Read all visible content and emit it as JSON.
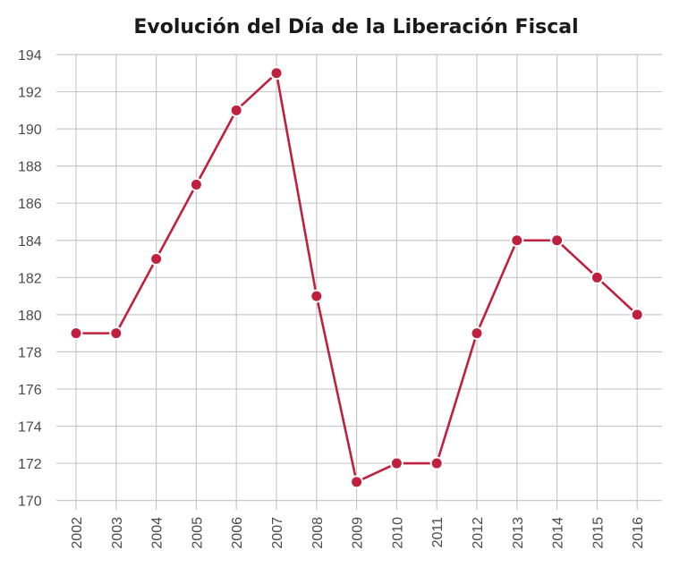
{
  "chart_data": {
    "type": "line",
    "title": "Evolución del Día de la Liberación Fiscal",
    "xlabel": "",
    "ylabel": "",
    "categories": [
      "2002",
      "2003",
      "2004",
      "2005",
      "2006",
      "2007",
      "2008",
      "2009",
      "2010",
      "2011",
      "2012",
      "2013",
      "2014",
      "2015",
      "2016"
    ],
    "series": [
      {
        "values": [
          179,
          179,
          183,
          187,
          191,
          193,
          181,
          171,
          172,
          172,
          179,
          184,
          184,
          182,
          180
        ]
      }
    ],
    "yticks": [
      "170",
      "172",
      "174",
      "176",
      "178",
      "180",
      "182",
      "184",
      "186",
      "188",
      "190",
      "192",
      "194"
    ],
    "ylim": [
      169.5,
      194
    ],
    "grid": true,
    "legend": "none",
    "line_color": "#c0203f",
    "marker_color": "#c0203f"
  }
}
